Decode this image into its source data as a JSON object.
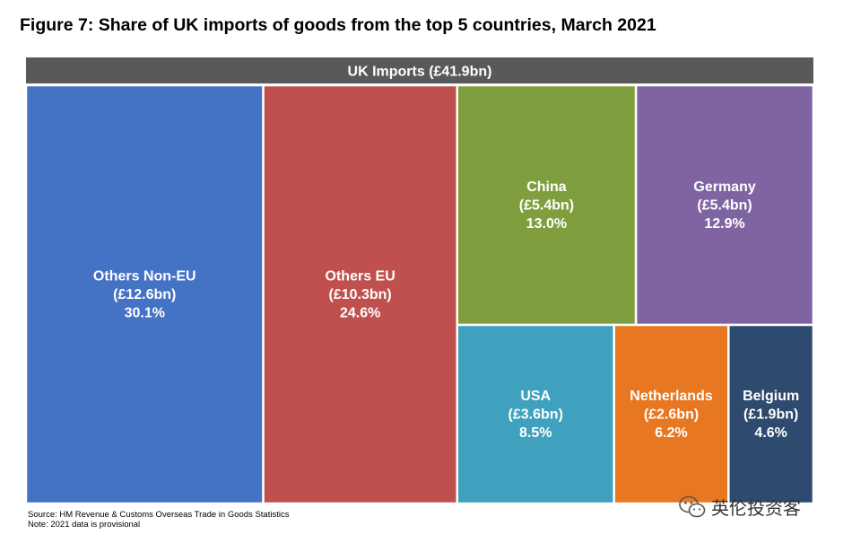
{
  "title": "Figure 7: Share of UK imports of goods from the top 5 countries, March 2021",
  "chart_data": {
    "type": "treemap",
    "title": "Figure 7: Share of UK imports of goods from the top 5 countries, March 2021",
    "header": "UK Imports (£41.9bn)",
    "items": [
      {
        "name": "Others Non-EU",
        "value_label": "(£12.6bn)",
        "share_label": "30.1%",
        "value": 12.6,
        "share": 30.1,
        "color": "#4472C4"
      },
      {
        "name": "Others EU",
        "value_label": "(£10.3bn)",
        "share_label": "24.6%",
        "value": 10.3,
        "share": 24.6,
        "color": "#C0504D"
      },
      {
        "name": "China",
        "value_label": "(£5.4bn)",
        "share_label": "13.0%",
        "value": 5.4,
        "share": 13.0,
        "color": "#7F9F3E"
      },
      {
        "name": "Germany",
        "value_label": "(£5.4bn)",
        "share_label": "12.9%",
        "value": 5.4,
        "share": 12.9,
        "color": "#8064A2"
      },
      {
        "name": "USA",
        "value_label": "(£3.6bn)",
        "share_label": "8.5%",
        "value": 3.6,
        "share": 8.5,
        "color": "#3FA1BD"
      },
      {
        "name": "Netherlands",
        "value_label": "(£2.6bn)",
        "share_label": "6.2%",
        "value": 2.6,
        "share": 6.2,
        "color": "#E87722"
      },
      {
        "name": "Belgium",
        "value_label": "(£1.9bn)",
        "share_label": "4.6%",
        "value": 1.9,
        "share": 4.6,
        "color": "#2E4A6E"
      }
    ]
  },
  "colors": {
    "header": "#595959"
  },
  "source": {
    "line1": "Source: HM Revenue & Customs Overseas Trade in Goods Statistics",
    "line2": "Note: 2021 data is provisional"
  },
  "watermark": {
    "text": "英伦投资客",
    "icon": "wechat-icon"
  }
}
